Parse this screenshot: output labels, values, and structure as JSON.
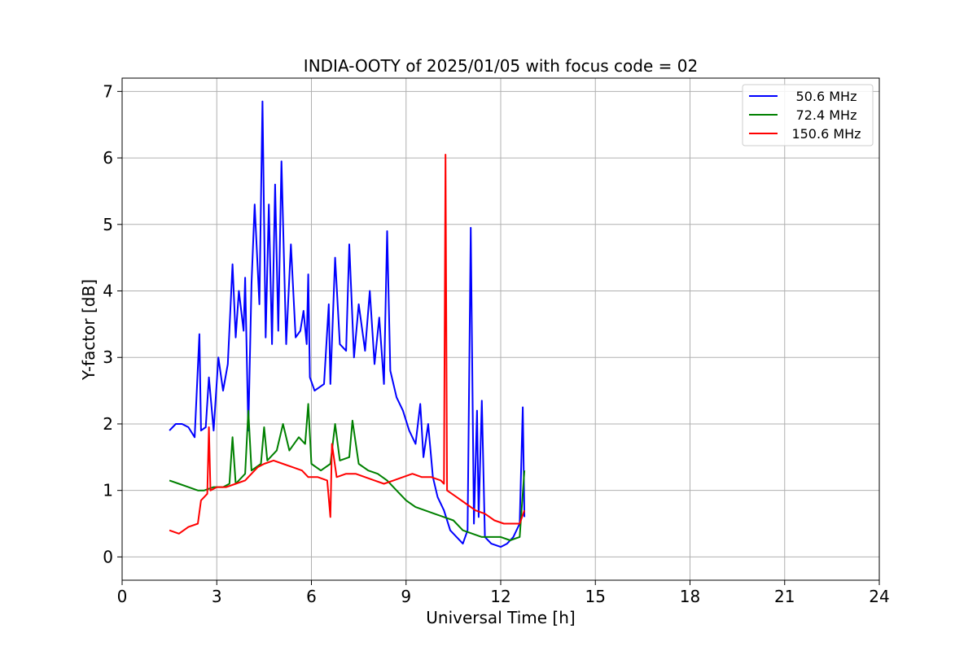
{
  "chart_data": {
    "type": "line",
    "title": "INDIA-OOTY of 2025/01/05 with focus code = 02",
    "xlabel": "Universal Time [h]",
    "ylabel": "Y-factor [dB]",
    "xlim": [
      0,
      24
    ],
    "ylim": [
      -0.35,
      7.2
    ],
    "xticks": [
      0,
      3,
      6,
      9,
      12,
      15,
      18,
      21,
      24
    ],
    "yticks": [
      0,
      1,
      2,
      3,
      4,
      5,
      6,
      7
    ],
    "grid": true,
    "legend_position": "top-right",
    "series": [
      {
        "name": "50.6 MHz",
        "color": "#0000ff",
        "points": [
          [
            1.5,
            1.9
          ],
          [
            1.7,
            2.0
          ],
          [
            1.9,
            2.0
          ],
          [
            2.1,
            1.95
          ],
          [
            2.3,
            1.8
          ],
          [
            2.45,
            3.35
          ],
          [
            2.5,
            1.9
          ],
          [
            2.65,
            1.95
          ],
          [
            2.75,
            2.7
          ],
          [
            2.9,
            1.9
          ],
          [
            3.05,
            3.0
          ],
          [
            3.2,
            2.5
          ],
          [
            3.35,
            2.9
          ],
          [
            3.5,
            4.4
          ],
          [
            3.6,
            3.3
          ],
          [
            3.7,
            4.0
          ],
          [
            3.85,
            3.4
          ],
          [
            3.9,
            4.2
          ],
          [
            4.0,
            1.9
          ],
          [
            4.1,
            4.1
          ],
          [
            4.2,
            5.3
          ],
          [
            4.35,
            3.8
          ],
          [
            4.45,
            6.85
          ],
          [
            4.55,
            3.3
          ],
          [
            4.65,
            5.3
          ],
          [
            4.75,
            3.2
          ],
          [
            4.85,
            5.6
          ],
          [
            4.95,
            3.4
          ],
          [
            5.05,
            5.95
          ],
          [
            5.2,
            3.2
          ],
          [
            5.35,
            4.7
          ],
          [
            5.5,
            3.3
          ],
          [
            5.65,
            3.4
          ],
          [
            5.75,
            3.7
          ],
          [
            5.85,
            3.2
          ],
          [
            5.9,
            4.25
          ],
          [
            5.95,
            2.7
          ],
          [
            6.1,
            2.5
          ],
          [
            6.4,
            2.6
          ],
          [
            6.55,
            3.8
          ],
          [
            6.6,
            2.6
          ],
          [
            6.75,
            4.5
          ],
          [
            6.9,
            3.2
          ],
          [
            7.1,
            3.1
          ],
          [
            7.2,
            4.7
          ],
          [
            7.35,
            3.0
          ],
          [
            7.5,
            3.8
          ],
          [
            7.7,
            3.1
          ],
          [
            7.85,
            4.0
          ],
          [
            8.0,
            2.9
          ],
          [
            8.15,
            3.6
          ],
          [
            8.3,
            2.6
          ],
          [
            8.4,
            4.9
          ],
          [
            8.5,
            2.8
          ],
          [
            8.7,
            2.4
          ],
          [
            8.9,
            2.2
          ],
          [
            9.1,
            1.9
          ],
          [
            9.3,
            1.7
          ],
          [
            9.45,
            2.3
          ],
          [
            9.55,
            1.5
          ],
          [
            9.7,
            2.0
          ],
          [
            9.85,
            1.2
          ],
          [
            10.0,
            0.9
          ],
          [
            10.2,
            0.7
          ],
          [
            10.4,
            0.4
          ],
          [
            10.6,
            0.3
          ],
          [
            10.8,
            0.2
          ],
          [
            10.95,
            0.4
          ],
          [
            11.05,
            4.95
          ],
          [
            11.15,
            0.5
          ],
          [
            11.25,
            2.2
          ],
          [
            11.3,
            0.6
          ],
          [
            11.4,
            2.35
          ],
          [
            11.5,
            0.3
          ],
          [
            11.7,
            0.2
          ],
          [
            12.0,
            0.15
          ],
          [
            12.2,
            0.2
          ],
          [
            12.4,
            0.3
          ],
          [
            12.6,
            0.5
          ],
          [
            12.7,
            2.25
          ],
          [
            12.75,
            0.6
          ]
        ]
      },
      {
        "name": "72.4 MHz",
        "color": "#008000",
        "points": [
          [
            1.5,
            1.15
          ],
          [
            1.8,
            1.1
          ],
          [
            2.1,
            1.05
          ],
          [
            2.4,
            1.0
          ],
          [
            2.6,
            1.0
          ],
          [
            2.9,
            1.05
          ],
          [
            3.2,
            1.05
          ],
          [
            3.4,
            1.1
          ],
          [
            3.5,
            1.8
          ],
          [
            3.6,
            1.1
          ],
          [
            3.9,
            1.25
          ],
          [
            4.0,
            2.2
          ],
          [
            4.1,
            1.3
          ],
          [
            4.4,
            1.4
          ],
          [
            4.5,
            1.95
          ],
          [
            4.6,
            1.45
          ],
          [
            4.9,
            1.6
          ],
          [
            5.1,
            2.0
          ],
          [
            5.3,
            1.6
          ],
          [
            5.6,
            1.8
          ],
          [
            5.8,
            1.7
          ],
          [
            5.9,
            2.3
          ],
          [
            6.0,
            1.4
          ],
          [
            6.3,
            1.3
          ],
          [
            6.6,
            1.4
          ],
          [
            6.75,
            2.0
          ],
          [
            6.9,
            1.45
          ],
          [
            7.2,
            1.5
          ],
          [
            7.3,
            2.05
          ],
          [
            7.5,
            1.4
          ],
          [
            7.8,
            1.3
          ],
          [
            8.1,
            1.25
          ],
          [
            8.4,
            1.15
          ],
          [
            8.7,
            1.0
          ],
          [
            9.0,
            0.85
          ],
          [
            9.3,
            0.75
          ],
          [
            9.6,
            0.7
          ],
          [
            9.9,
            0.65
          ],
          [
            10.2,
            0.6
          ],
          [
            10.5,
            0.55
          ],
          [
            10.8,
            0.4
          ],
          [
            11.1,
            0.35
          ],
          [
            11.4,
            0.3
          ],
          [
            11.7,
            0.3
          ],
          [
            12.0,
            0.3
          ],
          [
            12.3,
            0.25
          ],
          [
            12.6,
            0.3
          ],
          [
            12.75,
            1.3
          ]
        ]
      },
      {
        "name": "150.6 MHz",
        "color": "#ff0000",
        "points": [
          [
            1.5,
            0.4
          ],
          [
            1.8,
            0.35
          ],
          [
            2.1,
            0.45
          ],
          [
            2.4,
            0.5
          ],
          [
            2.5,
            0.85
          ],
          [
            2.7,
            0.95
          ],
          [
            2.75,
            1.95
          ],
          [
            2.8,
            1.0
          ],
          [
            3.0,
            1.05
          ],
          [
            3.3,
            1.05
          ],
          [
            3.6,
            1.1
          ],
          [
            3.9,
            1.15
          ],
          [
            4.1,
            1.25
          ],
          [
            4.3,
            1.35
          ],
          [
            4.5,
            1.4
          ],
          [
            4.8,
            1.45
          ],
          [
            5.1,
            1.4
          ],
          [
            5.4,
            1.35
          ],
          [
            5.7,
            1.3
          ],
          [
            5.9,
            1.2
          ],
          [
            6.2,
            1.2
          ],
          [
            6.5,
            1.15
          ],
          [
            6.6,
            0.6
          ],
          [
            6.65,
            1.7
          ],
          [
            6.8,
            1.2
          ],
          [
            7.1,
            1.25
          ],
          [
            7.4,
            1.25
          ],
          [
            7.7,
            1.2
          ],
          [
            8.0,
            1.15
          ],
          [
            8.3,
            1.1
          ],
          [
            8.6,
            1.15
          ],
          [
            8.9,
            1.2
          ],
          [
            9.2,
            1.25
          ],
          [
            9.5,
            1.2
          ],
          [
            9.8,
            1.2
          ],
          [
            10.1,
            1.15
          ],
          [
            10.2,
            1.1
          ],
          [
            10.25,
            6.05
          ],
          [
            10.3,
            1.0
          ],
          [
            10.6,
            0.9
          ],
          [
            10.9,
            0.8
          ],
          [
            11.2,
            0.7
          ],
          [
            11.5,
            0.65
          ],
          [
            11.8,
            0.55
          ],
          [
            12.1,
            0.5
          ],
          [
            12.4,
            0.5
          ],
          [
            12.6,
            0.5
          ],
          [
            12.75,
            0.7
          ]
        ]
      }
    ]
  }
}
